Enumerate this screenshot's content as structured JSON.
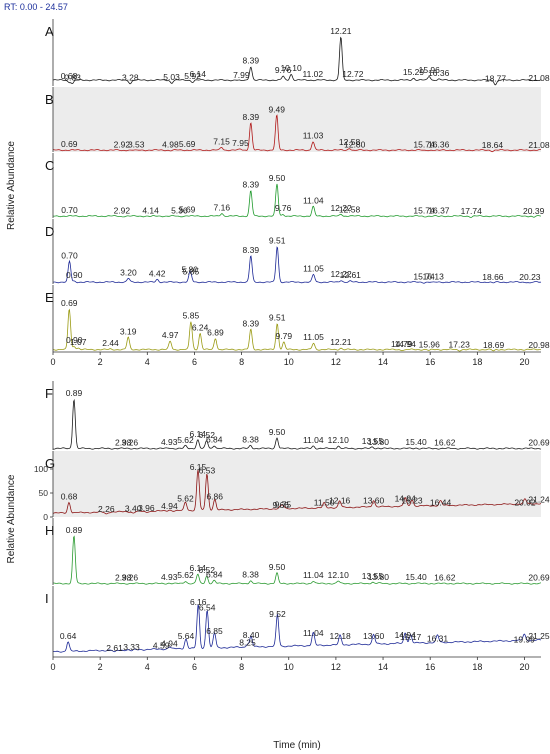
{
  "rt_label": "RT: 0.00 - 24.57",
  "chart_data": {
    "type": "line",
    "xlabel": "Time (min)",
    "ylabel": "Relative Abundance",
    "xlim": [
      0,
      20.7
    ],
    "ylim": [
      0,
      100
    ],
    "x_ticks": [
      0,
      2,
      4,
      6,
      8,
      10,
      12,
      14,
      16,
      18,
      20
    ],
    "y_ticks_groups": [
      "0",
      "50",
      "100"
    ],
    "series": [
      {
        "name": "A",
        "color": "#1a1a1a",
        "background": "#ffffff",
        "show_yticks": false,
        "baseline": 12,
        "peaks": [
          {
            "x": 0.68,
            "label": "0.68",
            "h": 8
          },
          {
            "x": 0.83,
            "label": "0.83",
            "h": 5
          },
          {
            "x": 3.28,
            "label": "3.28",
            "h": 5
          },
          {
            "x": 5.03,
            "label": "5.03",
            "h": 6
          },
          {
            "x": 5.92,
            "label": "5.92",
            "h": 8
          },
          {
            "x": 6.14,
            "label": "6.14",
            "h": 12
          },
          {
            "x": 7.99,
            "label": "7.99",
            "h": 10
          },
          {
            "x": 8.39,
            "label": "8.39",
            "h": 40
          },
          {
            "x": 9.76,
            "label": "9.76",
            "h": 20
          },
          {
            "x": 10.1,
            "label": "10.10",
            "h": 24
          },
          {
            "x": 11.02,
            "label": "11.02",
            "h": 12
          },
          {
            "x": 12.21,
            "label": "12.21",
            "h": 100
          },
          {
            "x": 12.72,
            "label": "12.72",
            "h": 12
          },
          {
            "x": 15.29,
            "label": "15.29",
            "h": 16
          },
          {
            "x": 15.96,
            "label": "15.96",
            "h": 20
          },
          {
            "x": 16.36,
            "label": "16.36",
            "h": 14
          },
          {
            "x": 18.77,
            "label": "18.77",
            "h": 3
          },
          {
            "x": 21.08,
            "label": "21.08",
            "h": 4
          }
        ]
      },
      {
        "name": "B",
        "color": "#b01818",
        "background": "#ececec",
        "show_yticks": false,
        "baseline": 4,
        "peaks": [
          {
            "x": 0.69,
            "label": "0.69",
            "h": 4
          },
          {
            "x": 2.92,
            "label": "2.92",
            "h": 3
          },
          {
            "x": 3.53,
            "label": "3.53",
            "h": 3
          },
          {
            "x": 4.98,
            "label": "4.98",
            "h": 3
          },
          {
            "x": 5.69,
            "label": "5.69",
            "h": 4
          },
          {
            "x": 7.15,
            "label": "7.15",
            "h": 10
          },
          {
            "x": 7.95,
            "label": "7.95",
            "h": 6
          },
          {
            "x": 8.39,
            "label": "8.39",
            "h": 62
          },
          {
            "x": 9.49,
            "label": "9.49",
            "h": 78
          },
          {
            "x": 11.03,
            "label": "11.03",
            "h": 22
          },
          {
            "x": 12.58,
            "label": "12.58",
            "h": 8
          },
          {
            "x": 12.8,
            "label": "12.80",
            "h": 3
          },
          {
            "x": 15.74,
            "label": "15.74",
            "h": 3
          },
          {
            "x": 16.36,
            "label": "16.36",
            "h": 3
          },
          {
            "x": 18.64,
            "label": "18.64",
            "h": 2
          },
          {
            "x": 21.08,
            "label": "21.08",
            "h": 2
          }
        ]
      },
      {
        "name": "C",
        "color": "#1f9a2c",
        "background": "#ffffff",
        "show_yticks": false,
        "baseline": 4,
        "peaks": [
          {
            "x": 0.7,
            "label": "0.70",
            "h": 4
          },
          {
            "x": 2.92,
            "label": "2.92",
            "h": 3
          },
          {
            "x": 4.14,
            "label": "4.14",
            "h": 3
          },
          {
            "x": 5.36,
            "label": "5.36",
            "h": 3
          },
          {
            "x": 5.69,
            "label": "5.69",
            "h": 5
          },
          {
            "x": 7.16,
            "label": "7.16",
            "h": 10
          },
          {
            "x": 8.39,
            "label": "8.39",
            "h": 58
          },
          {
            "x": 9.5,
            "label": "9.50",
            "h": 72
          },
          {
            "x": 9.76,
            "label": "9.76",
            "h": 8
          },
          {
            "x": 11.04,
            "label": "11.04",
            "h": 24
          },
          {
            "x": 12.22,
            "label": "12.22",
            "h": 8
          },
          {
            "x": 12.58,
            "label": "12.58",
            "h": 5
          },
          {
            "x": 15.74,
            "label": "15.74",
            "h": 3
          },
          {
            "x": 16.37,
            "label": "16.37",
            "h": 3
          },
          {
            "x": 17.74,
            "label": "17.74",
            "h": 2
          },
          {
            "x": 20.39,
            "label": "20.39",
            "h": 2
          }
        ]
      },
      {
        "name": "D",
        "color": "#1c2896",
        "background": "#ffffff",
        "show_yticks": false,
        "baseline": 4,
        "peaks": [
          {
            "x": 0.7,
            "label": "0.70",
            "h": 48
          },
          {
            "x": 0.9,
            "label": "0.90",
            "h": 6
          },
          {
            "x": 3.2,
            "label": "3.20",
            "h": 12
          },
          {
            "x": 4.42,
            "label": "4.42",
            "h": 10
          },
          {
            "x": 5.8,
            "label": "5.80",
            "h": 18
          },
          {
            "x": 5.85,
            "label": "5.85",
            "h": 14
          },
          {
            "x": 8.39,
            "label": "8.39",
            "h": 60
          },
          {
            "x": 9.51,
            "label": "9.51",
            "h": 80
          },
          {
            "x": 11.05,
            "label": "11.05",
            "h": 20
          },
          {
            "x": 12.22,
            "label": "12.22",
            "h": 8
          },
          {
            "x": 12.61,
            "label": "12.61",
            "h": 6
          },
          {
            "x": 15.74,
            "label": "15.74",
            "h": 3
          },
          {
            "x": 16.13,
            "label": "16.13",
            "h": 3
          },
          {
            "x": 18.66,
            "label": "18.66",
            "h": 2
          },
          {
            "x": 20.23,
            "label": "20.23",
            "h": 2
          }
        ]
      },
      {
        "name": "E",
        "color": "#9a9a12",
        "background": "#ffffff",
        "show_yticks": false,
        "baseline": 5,
        "peaks": [
          {
            "x": 0.69,
            "label": "0.69",
            "h": 88
          },
          {
            "x": 0.9,
            "label": "0.90",
            "h": 12
          },
          {
            "x": 1.07,
            "label": "1.07",
            "h": 8
          },
          {
            "x": 2.44,
            "label": "2.44",
            "h": 6
          },
          {
            "x": 3.19,
            "label": "3.19",
            "h": 30
          },
          {
            "x": 4.97,
            "label": "4.97",
            "h": 22
          },
          {
            "x": 5.85,
            "label": "5.85",
            "h": 62
          },
          {
            "x": 6.24,
            "label": "6.24",
            "h": 38
          },
          {
            "x": 6.89,
            "label": "6.89",
            "h": 28
          },
          {
            "x": 8.39,
            "label": "8.39",
            "h": 46
          },
          {
            "x": 9.51,
            "label": "9.51",
            "h": 58
          },
          {
            "x": 9.79,
            "label": "9.79",
            "h": 20
          },
          {
            "x": 11.05,
            "label": "11.05",
            "h": 18
          },
          {
            "x": 12.21,
            "label": "12.21",
            "h": 8
          },
          {
            "x": 14.79,
            "label": "14.79",
            "h": 4
          },
          {
            "x": 14.94,
            "label": "14.94",
            "h": 4
          },
          {
            "x": 15.96,
            "label": "15.96",
            "h": 3
          },
          {
            "x": 17.23,
            "label": "17.23",
            "h": 3
          },
          {
            "x": 18.69,
            "label": "18.69",
            "h": 2
          },
          {
            "x": 20.98,
            "label": "20.98",
            "h": 2
          }
        ]
      },
      {
        "name": "F",
        "color": "#1a1a1a",
        "background": "#ffffff",
        "show_yticks": false,
        "baseline": 3,
        "peaks": [
          {
            "x": 0.89,
            "label": "0.89",
            "h": 100
          },
          {
            "x": 2.98,
            "label": "2.98",
            "h": 3
          },
          {
            "x": 3.26,
            "label": "3.26",
            "h": 3
          },
          {
            "x": 4.93,
            "label": "4.93",
            "h": 4
          },
          {
            "x": 5.62,
            "label": "5.62",
            "h": 8
          },
          {
            "x": 6.14,
            "label": "6.14",
            "h": 20
          },
          {
            "x": 6.52,
            "label": "6.52",
            "h": 18
          },
          {
            "x": 6.84,
            "label": "6.84",
            "h": 9
          },
          {
            "x": 8.38,
            "label": "8.38",
            "h": 9
          },
          {
            "x": 9.5,
            "label": "9.50",
            "h": 24
          },
          {
            "x": 11.04,
            "label": "11.04",
            "h": 8
          },
          {
            "x": 12.1,
            "label": "12.10",
            "h": 8
          },
          {
            "x": 13.55,
            "label": "13.55",
            "h": 6
          },
          {
            "x": 13.8,
            "label": "13.80",
            "h": 4
          },
          {
            "x": 15.4,
            "label": "15.40",
            "h": 4
          },
          {
            "x": 16.62,
            "label": "16.62",
            "h": 3
          },
          {
            "x": 20.69,
            "label": "20.69",
            "h": 3
          }
        ]
      },
      {
        "name": "G",
        "color": "#8c1414",
        "background": "#ececec",
        "show_yticks": true,
        "baseline": 8,
        "drift": 20,
        "peaks": [
          {
            "x": 0.68,
            "label": "0.68",
            "h": 30
          },
          {
            "x": 2.26,
            "label": "2.26",
            "h": 4
          },
          {
            "x": 3.4,
            "label": "3.40",
            "h": 5
          },
          {
            "x": 3.96,
            "label": "3.96",
            "h": 6
          },
          {
            "x": 4.94,
            "label": "4.94",
            "h": 10
          },
          {
            "x": 5.62,
            "label": "5.62",
            "h": 26
          },
          {
            "x": 6.15,
            "label": "6.15",
            "h": 92
          },
          {
            "x": 6.53,
            "label": "6.53",
            "h": 84
          },
          {
            "x": 6.86,
            "label": "6.86",
            "h": 30
          },
          {
            "x": 9.66,
            "label": "9.66",
            "h": 12
          },
          {
            "x": 9.75,
            "label": "9.75",
            "h": 14
          },
          {
            "x": 11.5,
            "label": "11.50",
            "h": 18
          },
          {
            "x": 12.16,
            "label": "12.16",
            "h": 22
          },
          {
            "x": 13.6,
            "label": "13.60",
            "h": 22
          },
          {
            "x": 14.94,
            "label": "14.94",
            "h": 26
          },
          {
            "x": 15.23,
            "label": "15.23",
            "h": 22
          },
          {
            "x": 16.44,
            "label": "16.44",
            "h": 18
          },
          {
            "x": 20.02,
            "label": "20.02",
            "h": 18
          },
          {
            "x": 21.24,
            "label": "21.24",
            "h": 24
          }
        ]
      },
      {
        "name": "H",
        "color": "#2a9a30",
        "background": "#ffffff",
        "show_yticks": false,
        "baseline": 3,
        "peaks": [
          {
            "x": 0.89,
            "label": "0.89",
            "h": 100
          },
          {
            "x": 2.98,
            "label": "2.98",
            "h": 3
          },
          {
            "x": 3.26,
            "label": "3.26",
            "h": 3
          },
          {
            "x": 4.93,
            "label": "4.93",
            "h": 4
          },
          {
            "x": 5.62,
            "label": "5.62",
            "h": 8
          },
          {
            "x": 6.14,
            "label": "6.14",
            "h": 22
          },
          {
            "x": 6.52,
            "label": "6.52",
            "h": 18
          },
          {
            "x": 6.84,
            "label": "6.84",
            "h": 9
          },
          {
            "x": 8.38,
            "label": "8.38",
            "h": 9
          },
          {
            "x": 9.5,
            "label": "9.50",
            "h": 24
          },
          {
            "x": 11.04,
            "label": "11.04",
            "h": 8
          },
          {
            "x": 12.1,
            "label": "12.10",
            "h": 8
          },
          {
            "x": 13.55,
            "label": "13.55",
            "h": 6
          },
          {
            "x": 13.8,
            "label": "13.80",
            "h": 4
          },
          {
            "x": 15.4,
            "label": "15.40",
            "h": 4
          },
          {
            "x": 16.62,
            "label": "16.62",
            "h": 3
          },
          {
            "x": 20.69,
            "label": "20.69",
            "h": 3
          }
        ]
      },
      {
        "name": "I",
        "color": "#1c2896",
        "background": "#ffffff",
        "show_yticks": false,
        "baseline": 10,
        "drift": 22,
        "peaks": [
          {
            "x": 0.64,
            "label": "0.64",
            "h": 28
          },
          {
            "x": 2.61,
            "label": "2.61",
            "h": 6
          },
          {
            "x": 3.33,
            "label": "3.33",
            "h": 8
          },
          {
            "x": 4.59,
            "label": "4.59",
            "h": 10
          },
          {
            "x": 4.94,
            "label": "4.94",
            "h": 14
          },
          {
            "x": 5.64,
            "label": "5.64",
            "h": 28
          },
          {
            "x": 6.16,
            "label": "6.16",
            "h": 92
          },
          {
            "x": 6.54,
            "label": "6.54",
            "h": 82
          },
          {
            "x": 6.85,
            "label": "6.85",
            "h": 38
          },
          {
            "x": 8.25,
            "label": "8.25",
            "h": 16
          },
          {
            "x": 8.4,
            "label": "8.40",
            "h": 30
          },
          {
            "x": 9.52,
            "label": "9.52",
            "h": 70
          },
          {
            "x": 11.04,
            "label": "11.04",
            "h": 34
          },
          {
            "x": 12.18,
            "label": "12.18",
            "h": 28
          },
          {
            "x": 13.6,
            "label": "13.60",
            "h": 28
          },
          {
            "x": 14.94,
            "label": "14.94",
            "h": 30
          },
          {
            "x": 15.17,
            "label": "15.17",
            "h": 26
          },
          {
            "x": 16.31,
            "label": "16.31",
            "h": 24
          },
          {
            "x": 19.99,
            "label": "19.99",
            "h": 22
          },
          {
            "x": 21.25,
            "label": "21.25",
            "h": 28
          }
        ]
      }
    ]
  }
}
